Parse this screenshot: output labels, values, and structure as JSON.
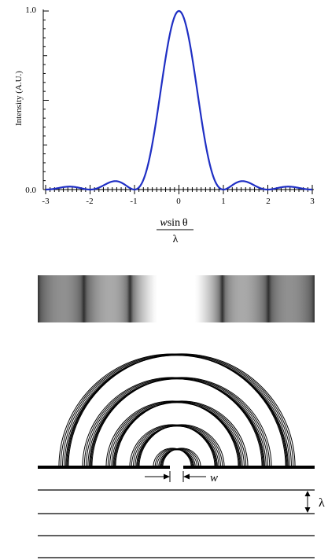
{
  "plot": {
    "ylabel": "Intensity (A.U.)",
    "y_ticks": [
      "0.0",
      "1.0"
    ],
    "x_ticks": [
      "-3",
      "-2",
      "-1",
      "0",
      "1",
      "2",
      "3"
    ],
    "xlabel_numerator_italic": "w",
    "xlabel_numerator_rest": "sin θ",
    "xlabel_denominator": "λ",
    "curve_color": "#1f2fc4"
  },
  "chart_data": {
    "type": "line",
    "title": "",
    "xlabel": "w sin θ / λ",
    "ylabel": "Intensity (A.U.)",
    "xlim": [
      -3,
      3
    ],
    "ylim": [
      0,
      1
    ],
    "grid": false,
    "series": [
      {
        "x": [
          -3,
          -2.75,
          -2.5,
          -2.25,
          -2,
          -1.75,
          -1.5,
          -1.43,
          -1.25,
          -1,
          -0.75,
          -0.5,
          -0.25,
          0,
          0.25,
          0.5,
          0.75,
          1,
          1.25,
          1.43,
          1.5,
          1.75,
          2,
          2.25,
          2.5,
          2.75,
          3
        ],
        "y": [
          0,
          0.0069,
          0.0162,
          0.0083,
          0,
          0.0265,
          0.045,
          0.0472,
          0.0325,
          0,
          0.1801,
          0.4053,
          0.8106,
          1,
          0.8106,
          0.4053,
          0.1801,
          0,
          0.0325,
          0.0472,
          0.045,
          0.0265,
          0,
          0.0083,
          0.0162,
          0.0069,
          0
        ]
      }
    ]
  },
  "pattern": {
    "description_colors": [
      "#303030",
      "#ffffff"
    ]
  },
  "diagram": {
    "slit_width_label": "w",
    "wavelength_label": "λ",
    "line_color": "#000000"
  }
}
